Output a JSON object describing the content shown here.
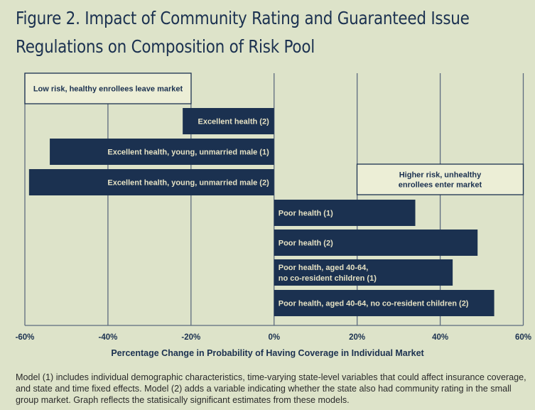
{
  "title": "Figure 2. Impact of Community Rating and Guaranteed Issue Regulations on Composition of Risk Pool",
  "caption": "Model (1) includes individual demographic characteristics, time-varying state-level variables that could affect insurance coverage, and state and time fixed effects. Model (2) adds a variable indicating whether the state also had community rating in the small group market. Graph reflects the statisically significant estimates from these models.",
  "colors": {
    "bar": "#1b3150",
    "bar_label": "#e6e2c4",
    "background": "#dde3c9",
    "annotation_box": "#eceed6"
  },
  "chart_data": {
    "type": "bar",
    "orientation": "horizontal",
    "title": "Figure 2. Impact of Community Rating and Guaranteed Issue Regulations on Composition of Risk Pool",
    "xlabel": "Percentage Change in Probability of Having Coverage in Individual Market",
    "ylabel": "",
    "xlim": [
      -60,
      60
    ],
    "xticks": [
      "-60%",
      "-40%",
      "-20%",
      "0%",
      "20%",
      "40%",
      "60%"
    ],
    "grid": true,
    "categories": [
      "Excellent health (2)",
      "Excellent health, young, unmarried male (1)",
      "Excellent health, young, unmarried male (2)",
      "Poor health (1)",
      "Poor health (2)",
      "Poor health, aged 40-64, no co-resident children (1)",
      "Poor health, aged 40-64, no co-resident children (2)"
    ],
    "bar_label_lines": [
      [
        "Excellent health (2)"
      ],
      [
        "Excellent health, young, unmarried male (1)"
      ],
      [
        "Excellent health, young, unmarried male (2)"
      ],
      [
        "Poor health (1)"
      ],
      [
        "Poor health (2)"
      ],
      [
        "Poor health, aged 40-64,",
        "no co-resident children (1)"
      ],
      [
        "Poor health, aged 40-64, no co-resident children (2)"
      ]
    ],
    "values": [
      -22,
      -54,
      -59,
      34,
      49,
      43,
      53
    ],
    "annotations": [
      {
        "text": [
          "Low risk, healthy enrollees leave market"
        ]
      },
      {
        "text": [
          "Higher risk, unhealthy",
          "enrollees enter market"
        ]
      }
    ]
  }
}
